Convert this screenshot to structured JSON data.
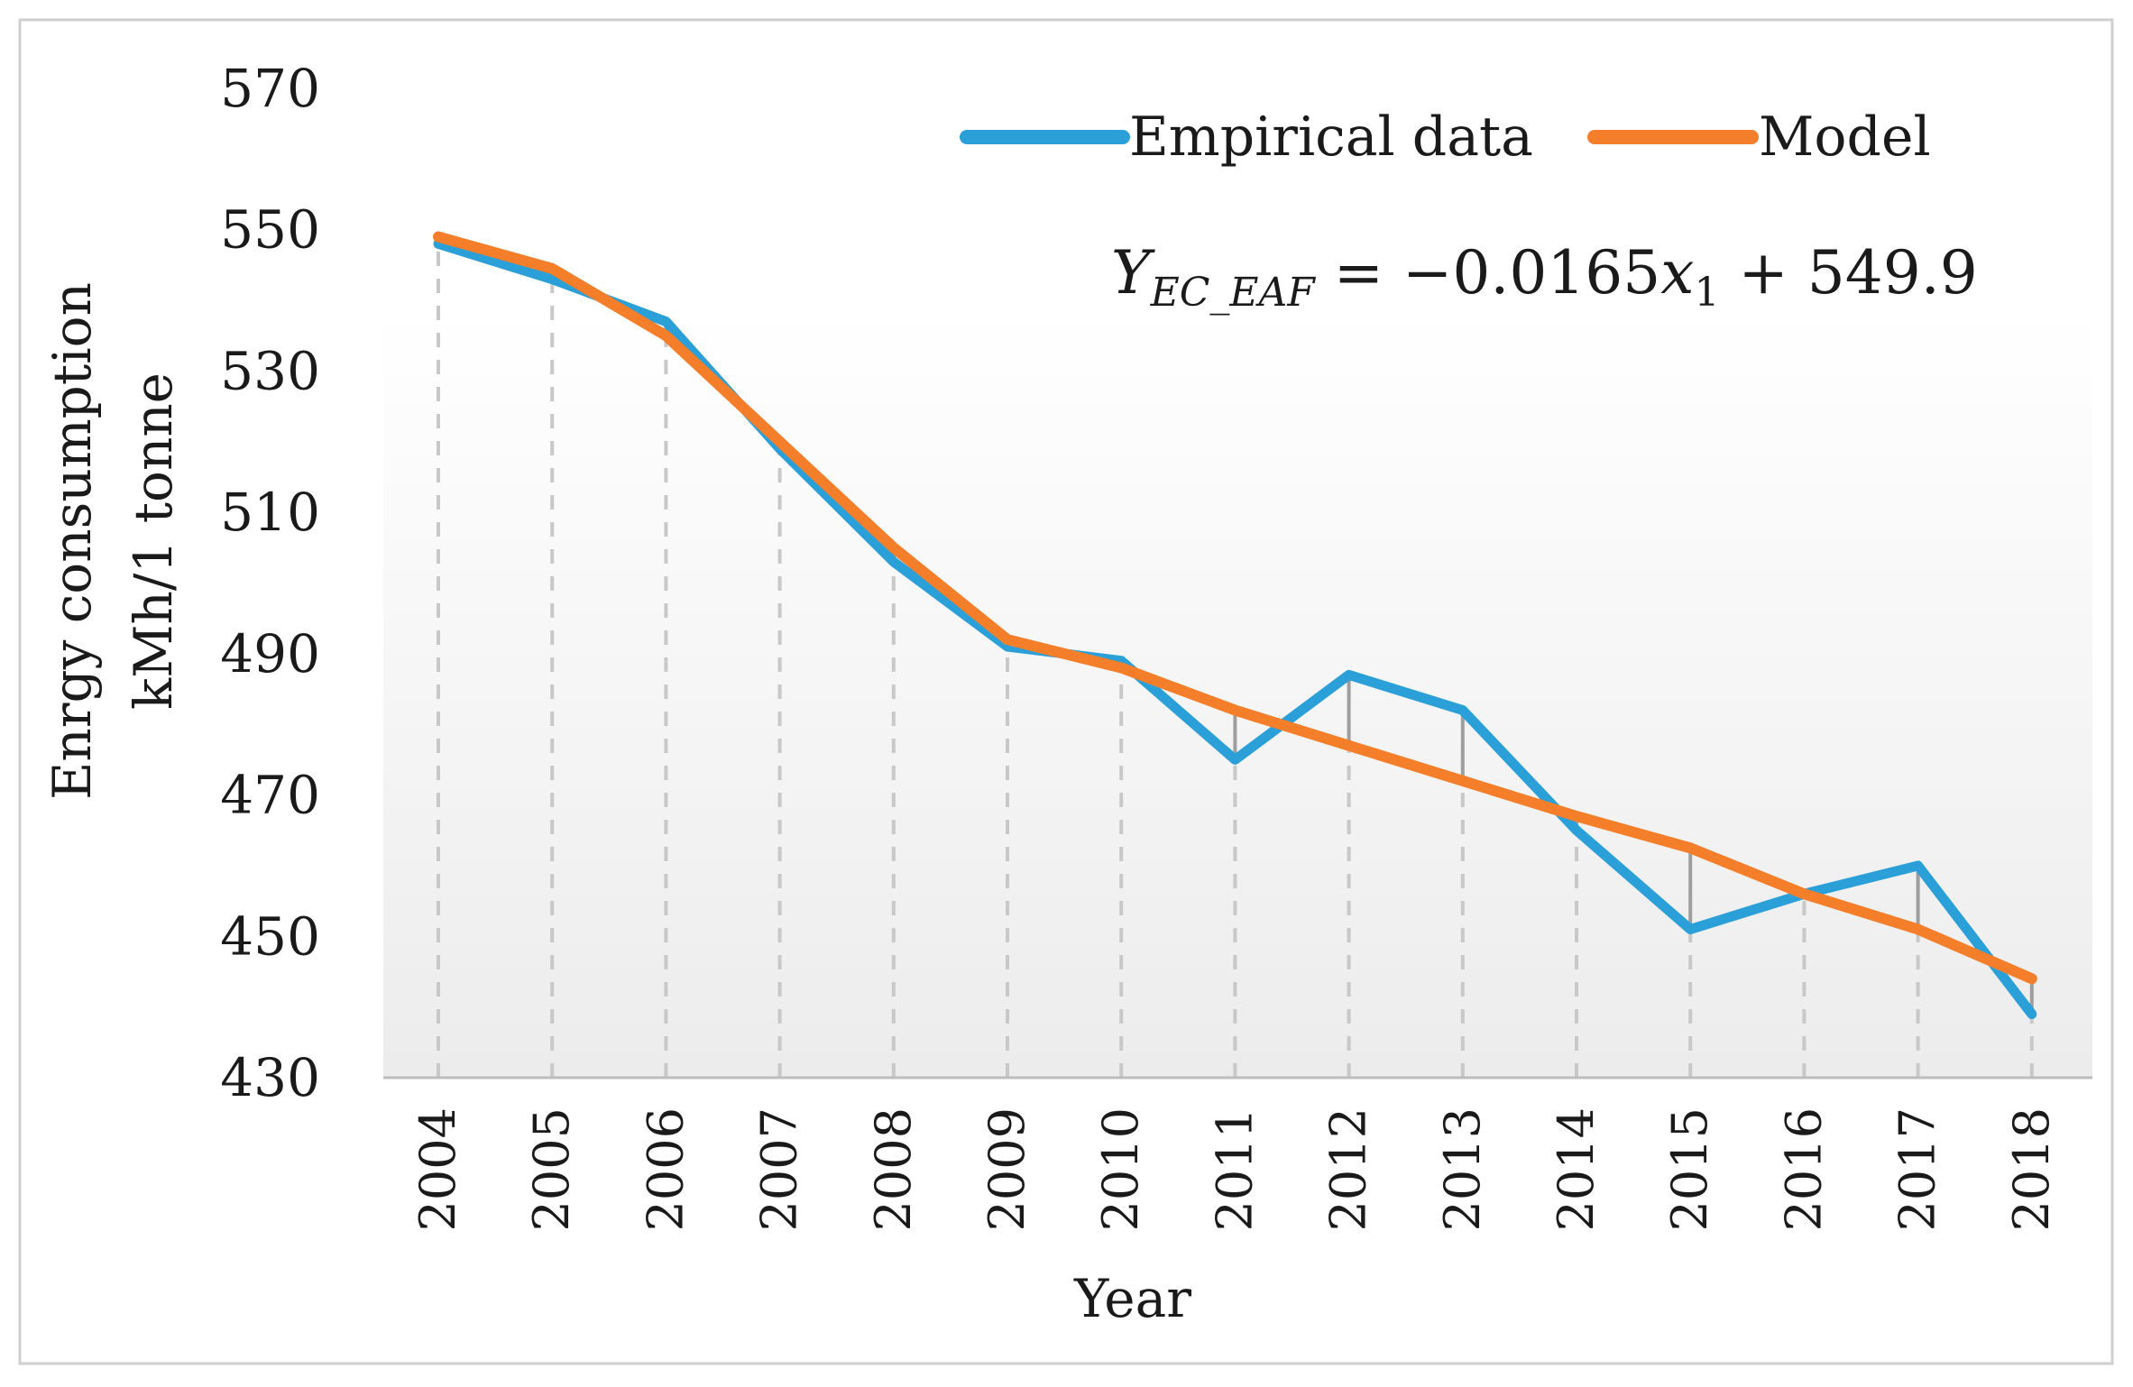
{
  "chart_data": {
    "type": "line",
    "title": "",
    "xlabel": "Year",
    "ylabel_lines": [
      "Enrgy consumption",
      "kMh/1 tonne"
    ],
    "categories": [
      "2004",
      "2005",
      "2006",
      "2007",
      "2008",
      "2009",
      "2010",
      "2011",
      "2012",
      "2013",
      "2014",
      "2015",
      "2016",
      "2017",
      "2018"
    ],
    "y_ticks": [
      430,
      450,
      470,
      490,
      510,
      530,
      550,
      570
    ],
    "ylim": [
      430,
      570
    ],
    "series": [
      {
        "name": "Empirical data",
        "color": "#2a9fd8",
        "values": [
          548,
          543,
          537,
          519,
          503,
          491,
          489,
          475,
          487,
          482,
          465,
          451,
          456,
          460,
          439
        ]
      },
      {
        "name": "Model",
        "color": "#f47e29",
        "values": [
          549,
          544.5,
          535,
          520,
          505,
          492,
          488,
          482,
          477,
          472,
          467,
          462.5,
          456,
          451,
          444
        ]
      }
    ],
    "legend": {
      "position": "top-right",
      "entries": [
        "Empirical data",
        "Model"
      ]
    },
    "annotation": {
      "equation_label": "Y",
      "equation_subscript": "EC_EAF",
      "equation_rhs": " = −0.0165",
      "equation_var": "x",
      "equation_var_subscript": "1",
      "equation_tail": " + 549.9"
    },
    "colors": {
      "residual": "#9e9e9e",
      "dropline": "#c8c8c8",
      "axis": "#bdbdbd",
      "frame": "#cfcfcf"
    }
  }
}
